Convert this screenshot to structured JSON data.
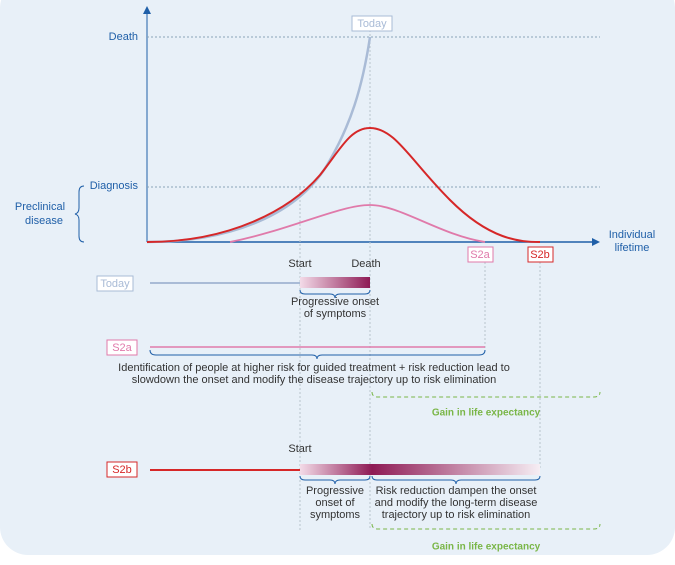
{
  "axes": {
    "y_labels": {
      "death": "Death",
      "diagnosis": "Diagnosis"
    },
    "preclinical": [
      "Preclinical",
      "disease"
    ],
    "x_label": [
      "Individual",
      "lifetime"
    ]
  },
  "chart_tags": {
    "today": "Today",
    "s2a": "S2a",
    "s2b": "S2b"
  },
  "rows": {
    "today": {
      "tag": "Today",
      "start": "Start",
      "end": "Death",
      "note": [
        "Progressive onset",
        "of symptoms"
      ]
    },
    "s2a": {
      "tag": "S2a",
      "note": [
        "Identification of people at higher risk for guided treatment + risk reduction lead to",
        "slowdown the onset and modify the disease trajectory up to risk elimination"
      ],
      "gain": "Gain in life expectancy"
    },
    "s2b": {
      "tag": "S2b",
      "start": "Start",
      "note_left": [
        "Progressive",
        "onset of",
        "symptoms"
      ],
      "note_right": [
        "Risk reduction dampen the onset",
        "and modify the long-term disease",
        "trajectory up to risk elimination"
      ],
      "gain": "Gain in life expectancy"
    }
  }
}
